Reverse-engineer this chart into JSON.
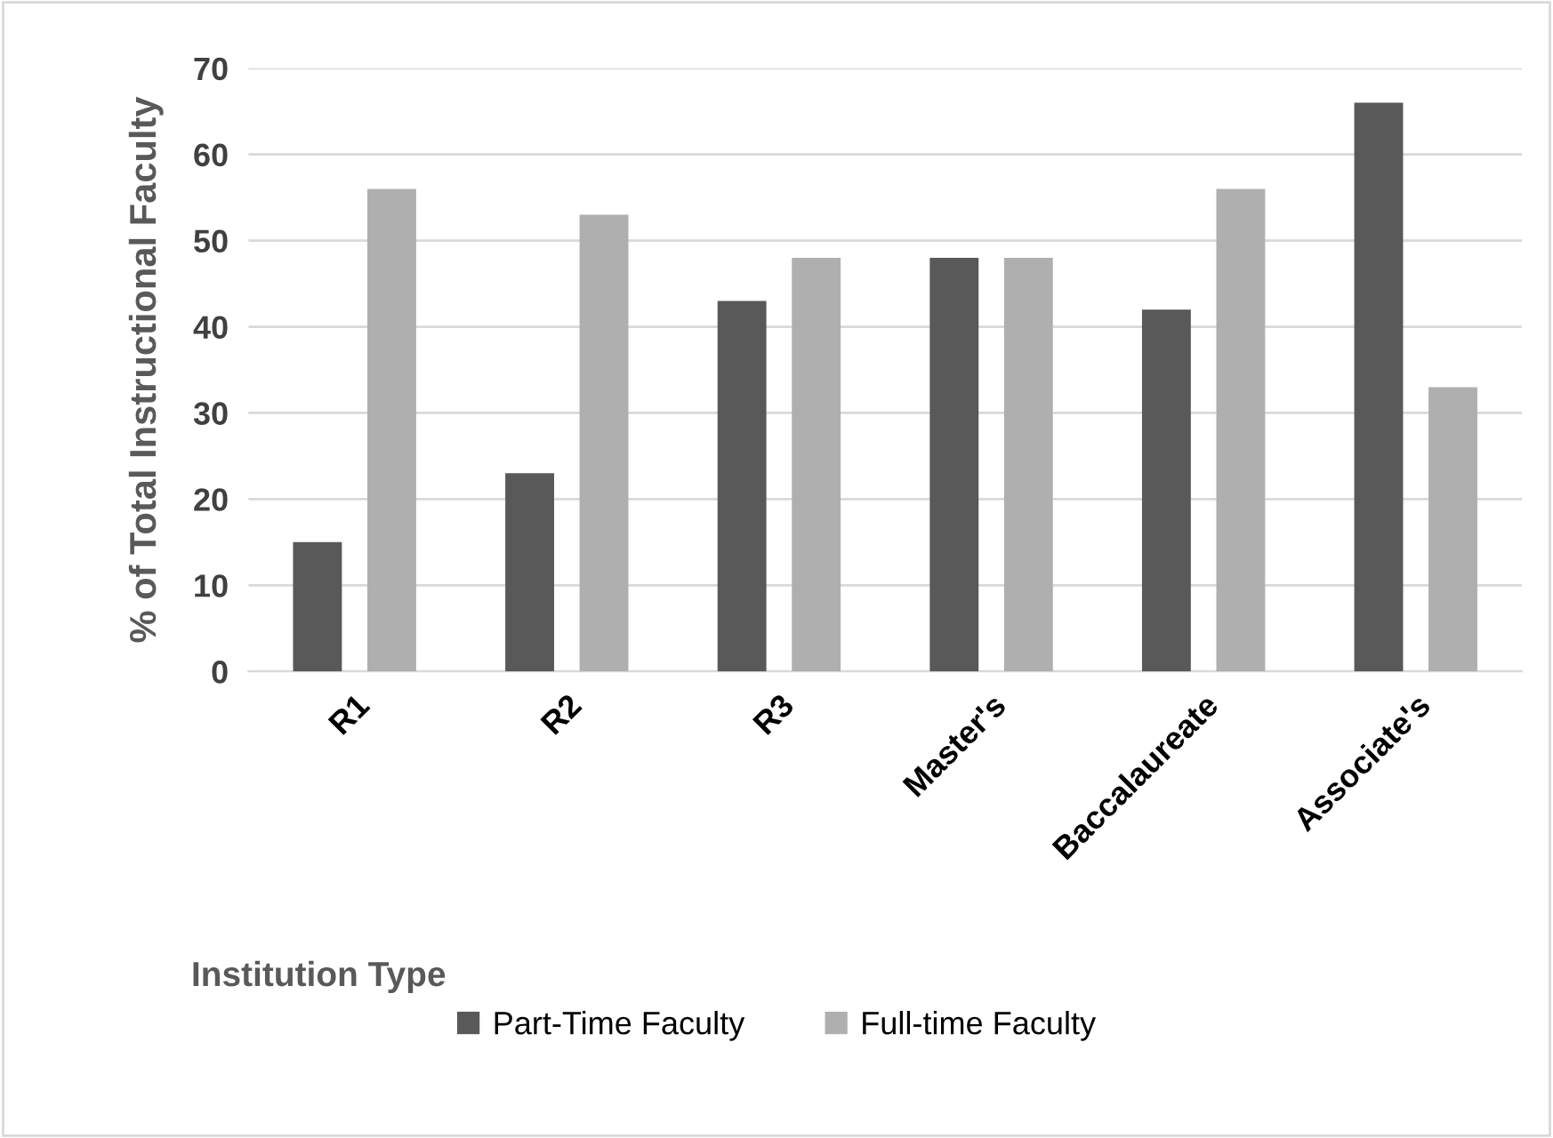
{
  "chart_data": {
    "type": "bar",
    "xlabel": "Institution Type",
    "ylabel": "% of Total Instructional Faculty",
    "categories": [
      "R1",
      "R2",
      "R3",
      "Master's",
      "Baccalaureate",
      "Associate's"
    ],
    "series": [
      {
        "name": "Part-Time Faculty",
        "color": "#595959",
        "values": [
          15,
          23,
          43,
          48,
          42,
          66
        ]
      },
      {
        "name": "Full-time Faculty",
        "color": "#afafaf",
        "values": [
          56,
          53,
          48,
          48,
          56,
          33
        ]
      }
    ],
    "ylim": [
      0,
      70
    ],
    "yticks": [
      0,
      10,
      20,
      30,
      40,
      50,
      60,
      70
    ],
    "grid": "y",
    "legend": "bottom"
  }
}
